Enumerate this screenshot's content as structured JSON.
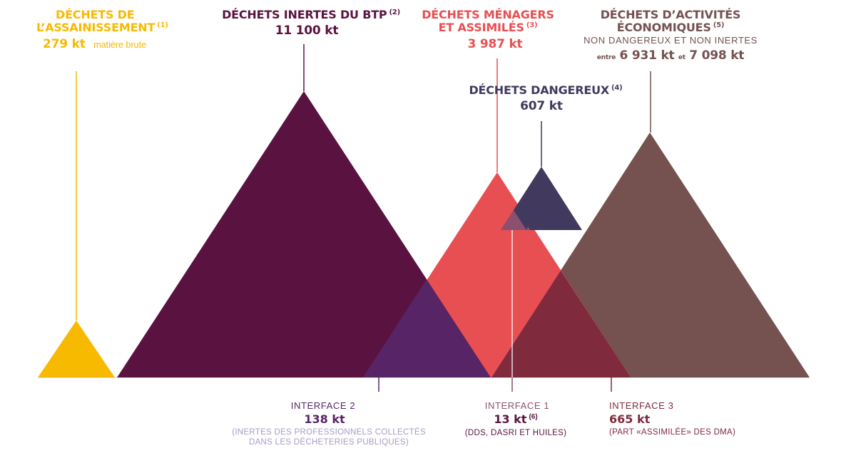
{
  "colors": {
    "assainissement": "#F7BA00",
    "btp": "#5A1340",
    "menagers": "#E84F52",
    "dangereux": "#41395E",
    "economiques": "#755150",
    "interface2": "#572466",
    "interface3": "#7F2A3D",
    "interface1": "#8B5070",
    "note_lavender": "#A79BC2",
    "interface_gray": "#7A6675"
  },
  "assainissement": {
    "title_line1": "DÉCHETS DE",
    "title_line2": "L’ASSAINISSEMENT",
    "ref": "(1)",
    "value": "279 kt",
    "unit_note": "matière brute"
  },
  "btp": {
    "title": "DÉCHETS INERTES DU BTP",
    "ref": "(2)",
    "value": "11 100 kt"
  },
  "menagers": {
    "title_line1": "DÉCHETS MÉNAGERS",
    "title_line2": "ET ASSIMILÉS",
    "ref": "(3)",
    "value": "3 987 kt"
  },
  "dangereux": {
    "title": "DÉCHETS DANGEREUX",
    "ref": "(4)",
    "value": "607 kt"
  },
  "economiques": {
    "title_line1": "DÉCHETS D’ACTIVITÉS",
    "title_line2": "ÉCONOMIQUES",
    "ref": "(5)",
    "subtitle": "NON DANGEREUX ET NON INERTES",
    "prefix": "entre",
    "value_min": "6 931 kt",
    "connector": "et",
    "value_max": "7 098 kt"
  },
  "interface2": {
    "title": "INTERFACE 2",
    "value": "138 kt",
    "note_line1": "(INERTES DES PROFESSIONNELS COLLECTÉS",
    "note_line2": "DANS LES DÉCHETERIES PUBLIQUES)"
  },
  "interface1": {
    "title": "INTERFACE 1",
    "value": "13 kt",
    "ref": "(6)",
    "note": "(DDS, DASRI ET HUILES)"
  },
  "interface3": {
    "title": "INTERFACE 3",
    "value": "665 kt",
    "note": "(PART «ASSIMILÉE» DES DMA)"
  }
}
